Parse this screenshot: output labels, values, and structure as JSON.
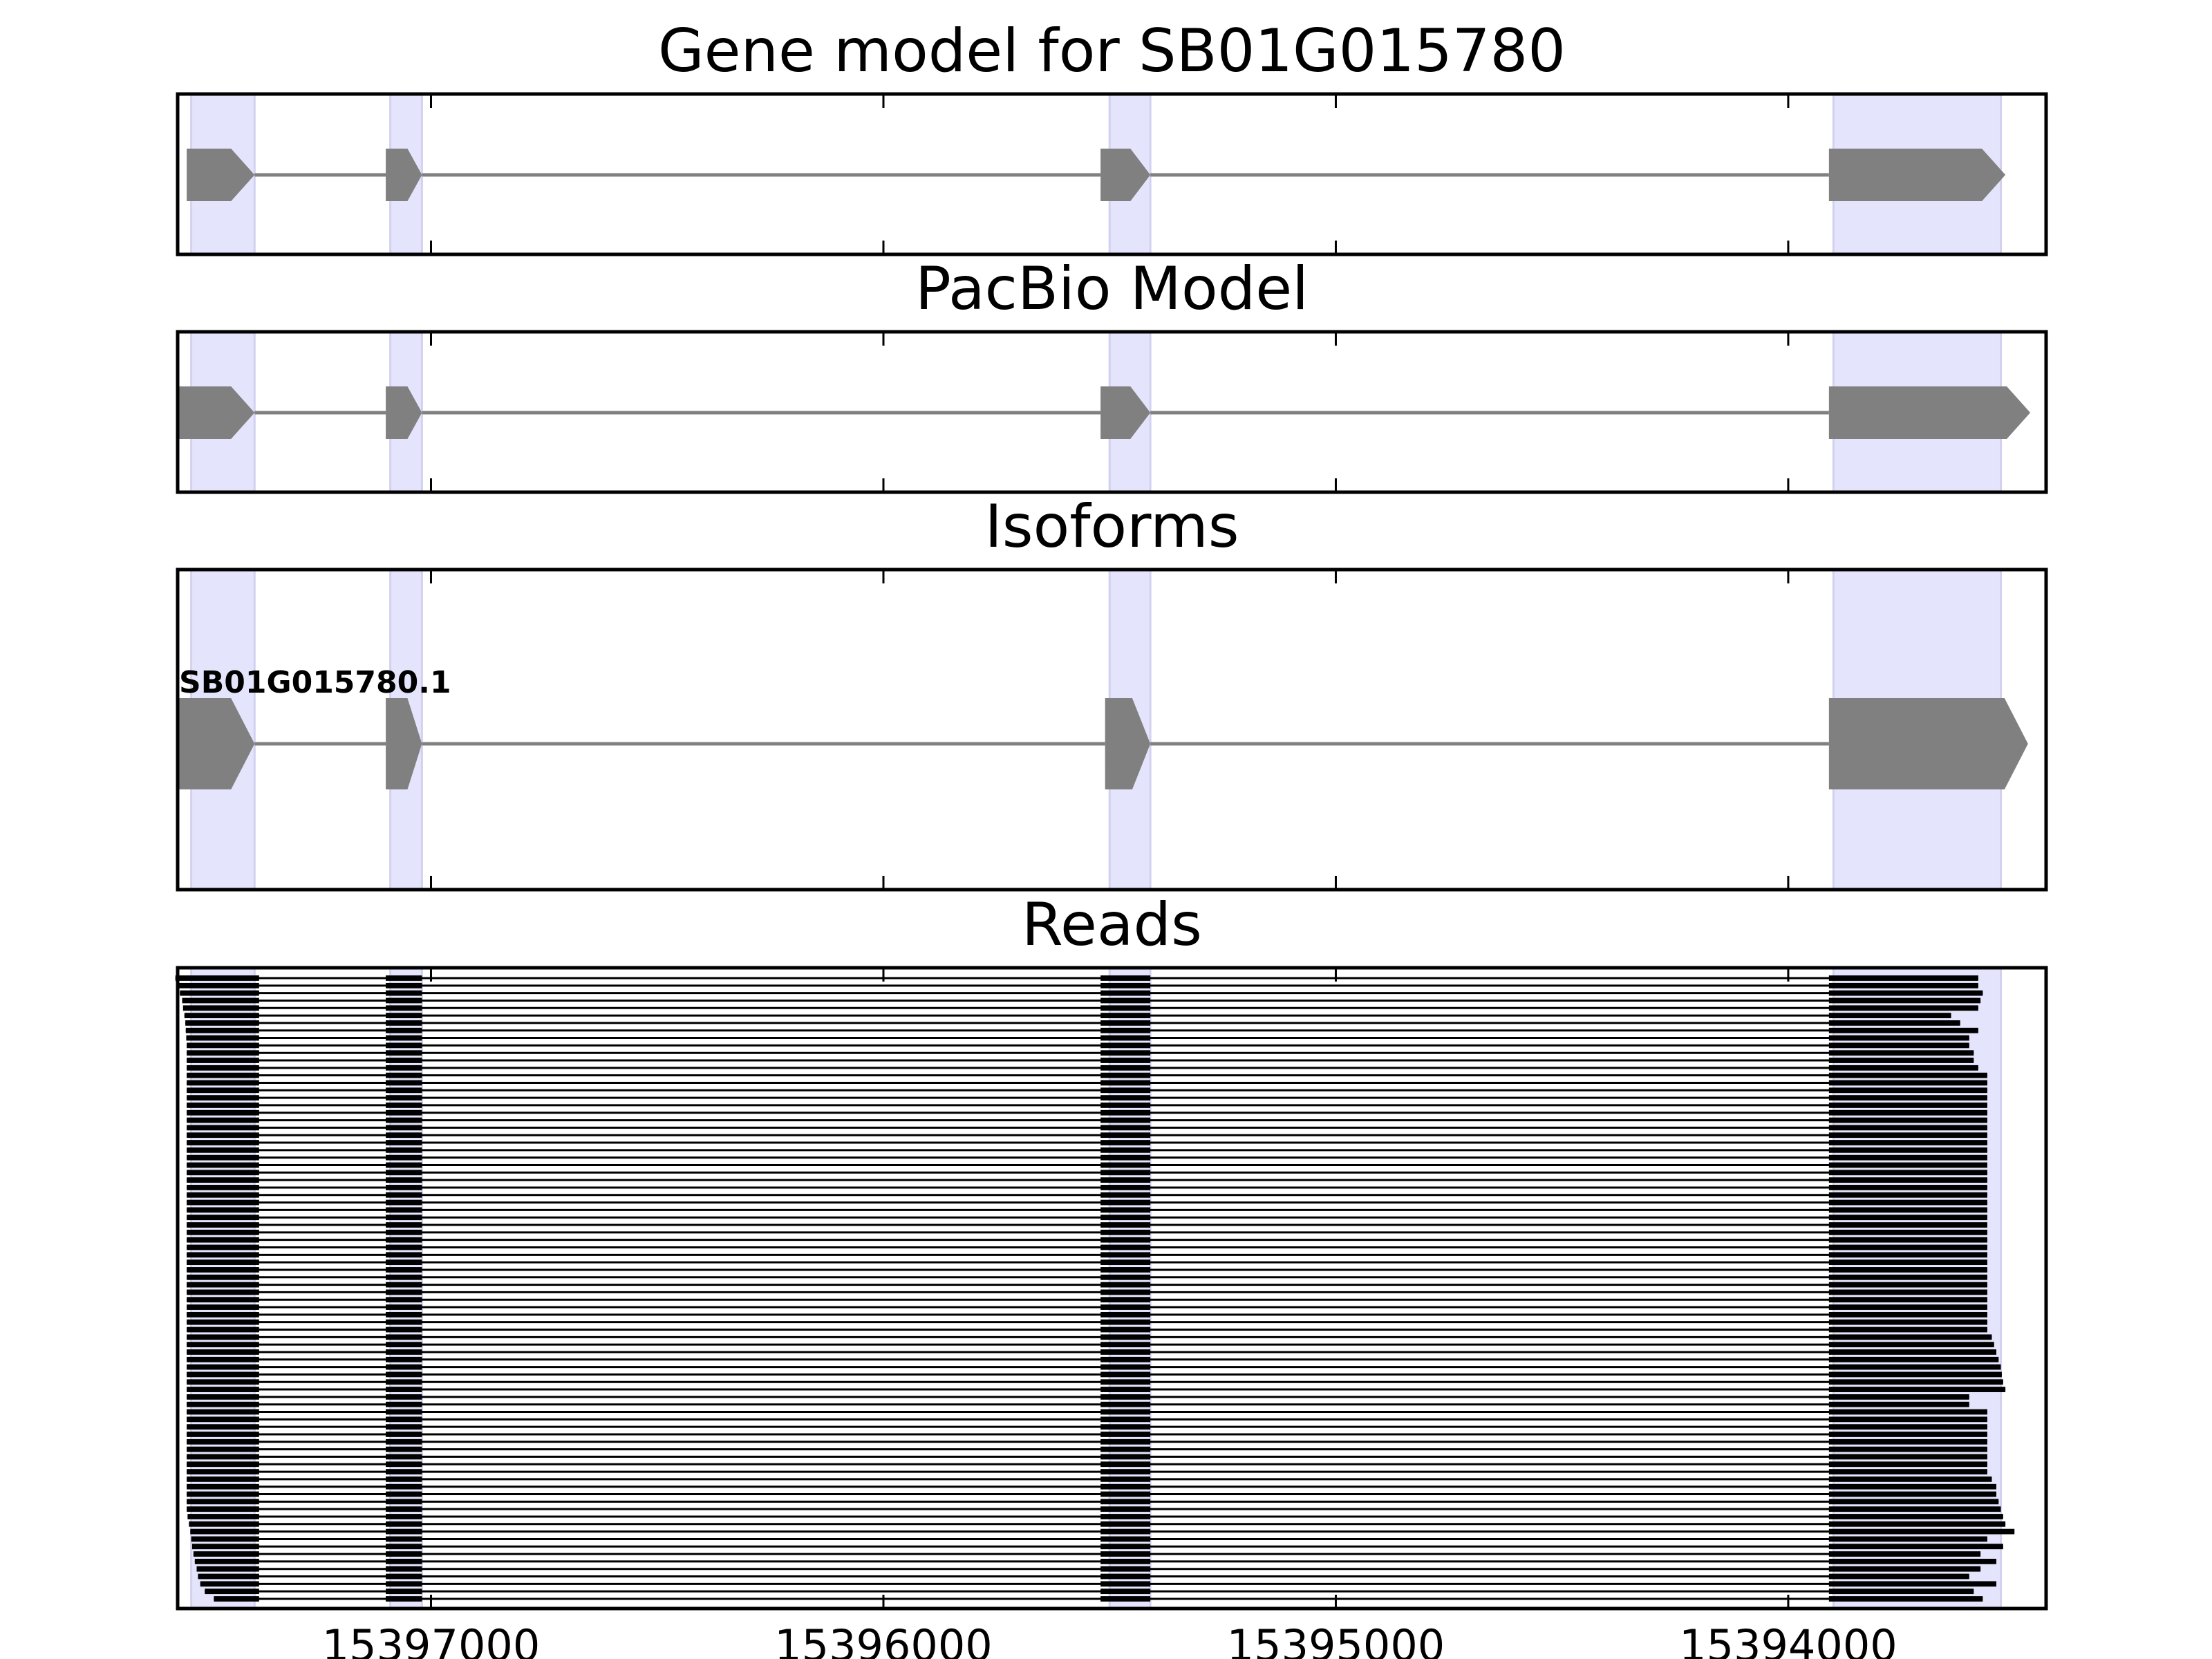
{
  "chart_data": {
    "type": "gene_model_tracks",
    "x_axis": {
      "reversed": true,
      "xlim": [
        15397560,
        15393430
      ],
      "ticks": [
        15397000,
        15396000,
        15395000,
        15394000
      ],
      "tick_labels": [
        "15397000",
        "15396000",
        "15395000",
        "15394000"
      ],
      "grid": false
    },
    "highlight_color": "#e4e4fc",
    "feature_color": "#808080",
    "read_color": "#000000",
    "highlights": [
      {
        "start": 15397530,
        "end": 15397390
      },
      {
        "start": 15397090,
        "end": 15397020
      },
      {
        "start": 15395500,
        "end": 15395410
      },
      {
        "start": 15393900,
        "end": 15393530
      }
    ],
    "panels": [
      {
        "title": "Gene model for SB01G015780",
        "name": "gene-model",
        "exons": [
          {
            "start": 15397540,
            "end": 15397390
          },
          {
            "start": 15397100,
            "end": 15397020
          },
          {
            "start": 15395520,
            "end": 15395410
          },
          {
            "start": 15393910,
            "end": 15393520
          }
        ]
      },
      {
        "title": "PacBio Model",
        "name": "pacbio-model",
        "exons": [
          {
            "start": 15397560,
            "end": 15397390
          },
          {
            "start": 15397100,
            "end": 15397020
          },
          {
            "start": 15395520,
            "end": 15395410
          },
          {
            "start": 15393910,
            "end": 15393465
          }
        ]
      },
      {
        "title": "Isoforms",
        "name": "isoforms",
        "isoforms": [
          {
            "label": "SB01G015780.1",
            "exons": [
              {
                "start": 15397560,
                "end": 15397390
              },
              {
                "start": 15397100,
                "end": 15397020
              },
              {
                "start": 15395510,
                "end": 15395410
              },
              {
                "start": 15393910,
                "end": 15393470
              }
            ]
          }
        ]
      },
      {
        "title": "Reads",
        "name": "reads",
        "read_count": 84,
        "shared_exons": [
          {
            "start": 15397100,
            "end": 15397020
          },
          {
            "start": 15395520,
            "end": 15395410
          }
        ],
        "exon1_end": 15397380,
        "exon4_start": 15393910,
        "read_starts": [
          15397565,
          15397560,
          15397555,
          15397550,
          15397548,
          15397545,
          15397543,
          15397542,
          15397541,
          15397540,
          15397540,
          15397540,
          15397540,
          15397540,
          15397540,
          15397540,
          15397540,
          15397540,
          15397540,
          15397540,
          15397540,
          15397540,
          15397540,
          15397540,
          15397540,
          15397540,
          15397540,
          15397540,
          15397540,
          15397540,
          15397540,
          15397540,
          15397540,
          15397540,
          15397540,
          15397540,
          15397540,
          15397540,
          15397540,
          15397540,
          15397540,
          15397540,
          15397540,
          15397540,
          15397540,
          15397540,
          15397540,
          15397540,
          15397540,
          15397540,
          15397540,
          15397540,
          15397540,
          15397540,
          15397540,
          15397540,
          15397540,
          15397540,
          15397540,
          15397540,
          15397540,
          15397540,
          15397540,
          15397540,
          15397540,
          15397540,
          15397540,
          15397540,
          15397540,
          15397540,
          15397540,
          15397540,
          15397538,
          15397535,
          15397532,
          15397530,
          15397528,
          15397525,
          15397522,
          15397518,
          15397515,
          15397510,
          15397500,
          15397480
        ],
        "read_ends": [
          15393580,
          15393580,
          15393570,
          15393575,
          15393580,
          15393640,
          15393620,
          15393580,
          15393600,
          15393600,
          15393590,
          15393590,
          15393580,
          15393560,
          15393560,
          15393560,
          15393560,
          15393560,
          15393560,
          15393560,
          15393560,
          15393560,
          15393560,
          15393560,
          15393560,
          15393560,
          15393560,
          15393560,
          15393560,
          15393560,
          15393560,
          15393560,
          15393560,
          15393560,
          15393560,
          15393560,
          15393560,
          15393560,
          15393560,
          15393560,
          15393560,
          15393560,
          15393560,
          15393560,
          15393560,
          15393560,
          15393560,
          15393560,
          15393550,
          15393545,
          15393540,
          15393535,
          15393530,
          15393528,
          15393525,
          15393520,
          15393600,
          15393600,
          15393560,
          15393560,
          15393560,
          15393560,
          15393560,
          15393560,
          15393560,
          15393560,
          15393560,
          15393550,
          15393540,
          15393540,
          15393535,
          15393530,
          15393525,
          15393520,
          15393500,
          15393560,
          15393525,
          15393575,
          15393540,
          15393575,
          15393600,
          15393540,
          15393590,
          15393570
        ]
      }
    ]
  }
}
